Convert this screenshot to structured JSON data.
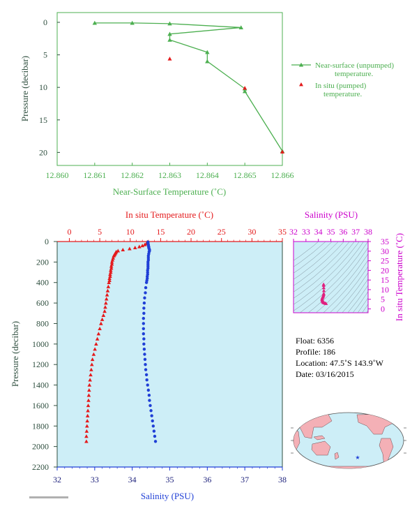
{
  "chart_data": [
    {
      "type": "line",
      "xlabel": "Near-Surface Temperature (˚C)",
      "ylabel": "Pressure (decibar)",
      "xlim": [
        12.86,
        12.866
      ],
      "ylim": [
        22,
        -1.5
      ],
      "x_ticks": [
        "12.860",
        "12.861",
        "12.862",
        "12.863",
        "12.864",
        "12.865",
        "12.866"
      ],
      "y_ticks": [
        "0",
        "5",
        "10",
        "15",
        "20"
      ],
      "legend_placement": "right",
      "series": [
        {
          "name": "Near-surface (unpumped) temperature.",
          "name_lines": [
            "Near-surface (unpumped)",
            "temperature."
          ],
          "color": "#4caf50",
          "marker": "triangle",
          "x": [
            12.861,
            12.862,
            12.863,
            12.8649,
            12.863,
            12.863,
            12.864,
            12.864,
            12.865,
            12.865,
            12.866
          ],
          "y": [
            0.1,
            0.1,
            0.2,
            0.8,
            1.8,
            2.7,
            4.6,
            6.0,
            10.2,
            10.6,
            19.8
          ]
        },
        {
          "name": "In situ (pumped) temperature.",
          "name_lines": [
            "In situ (pumped)",
            "temperature."
          ],
          "color": "#e41a1c",
          "marker": "triangle",
          "x": [
            12.863,
            12.865,
            12.866
          ],
          "y": [
            5.6,
            10.1,
            19.9
          ]
        }
      ]
    },
    {
      "type": "scatter",
      "title_top_axis": "In situ Temperature (˚C)",
      "xlabel": "Salinity (PSU)",
      "ylabel": "Pressure (decibar)",
      "temp_lim": [
        -2,
        35
      ],
      "temp_ticks": [
        "0",
        "5",
        "10",
        "15",
        "20",
        "25",
        "30",
        "35"
      ],
      "sal_lim": [
        32,
        38
      ],
      "sal_ticks": [
        "32",
        "33",
        "34",
        "35",
        "36",
        "37",
        "38"
      ],
      "ylim": [
        2200,
        0
      ],
      "y_ticks": [
        "0",
        "200",
        "400",
        "600",
        "800",
        "1000",
        "1200",
        "1400",
        "1600",
        "1800",
        "2000",
        "2200"
      ],
      "series": [
        {
          "name": "In situ Temperature",
          "color": "#e41a1c",
          "marker": "triangle",
          "depth": [
            5,
            10,
            20,
            30,
            40,
            50,
            60,
            70,
            80,
            90,
            100,
            110,
            120,
            130,
            140,
            160,
            180,
            200,
            220,
            240,
            260,
            280,
            300,
            320,
            340,
            360,
            380,
            400,
            440,
            480,
            520,
            560,
            600,
            640,
            680,
            720,
            760,
            800,
            850,
            900,
            950,
            1000,
            1050,
            1100,
            1150,
            1200,
            1250,
            1300,
            1350,
            1400,
            1450,
            1500,
            1550,
            1600,
            1650,
            1700,
            1750,
            1800,
            1850,
            1900,
            1950
          ],
          "temp": [
            12.8,
            12.8,
            12.7,
            12.4,
            12.0,
            11.5,
            10.8,
            9.9,
            8.8,
            8.0,
            7.7,
            7.6,
            7.5,
            7.4,
            7.3,
            7.2,
            7.1,
            7.0,
            7.0,
            6.9,
            6.9,
            6.8,
            6.8,
            6.7,
            6.7,
            6.6,
            6.6,
            6.5,
            6.4,
            6.3,
            6.2,
            6.1,
            6.0,
            5.9,
            5.8,
            5.6,
            5.4,
            5.2,
            5.0,
            4.8,
            4.6,
            4.4,
            4.2,
            4.0,
            3.8,
            3.7,
            3.6,
            3.5,
            3.4,
            3.3,
            3.25,
            3.2,
            3.15,
            3.1,
            3.05,
            3.0,
            2.95,
            2.9,
            2.85,
            2.8,
            2.8
          ]
        },
        {
          "name": "Salinity",
          "color": "#1f3fd6",
          "marker": "circle",
          "depth": [
            5,
            10,
            20,
            30,
            40,
            50,
            60,
            70,
            80,
            90,
            100,
            120,
            140,
            160,
            180,
            200,
            220,
            240,
            260,
            280,
            300,
            320,
            340,
            360,
            380,
            400,
            450,
            500,
            550,
            600,
            650,
            700,
            750,
            800,
            850,
            900,
            950,
            1000,
            1050,
            1100,
            1150,
            1200,
            1250,
            1300,
            1350,
            1400,
            1450,
            1500,
            1550,
            1600,
            1650,
            1700,
            1750,
            1800,
            1850,
            1900,
            1950
          ],
          "sal": [
            34.42,
            34.42,
            34.42,
            34.43,
            34.43,
            34.44,
            34.44,
            34.45,
            34.46,
            34.46,
            34.45,
            34.44,
            34.43,
            34.43,
            34.43,
            34.42,
            34.42,
            34.42,
            34.42,
            34.41,
            34.41,
            34.41,
            34.4,
            34.4,
            34.39,
            34.38,
            34.36,
            34.35,
            34.33,
            34.32,
            34.31,
            34.31,
            34.3,
            34.3,
            34.3,
            34.3,
            34.31,
            34.31,
            34.32,
            34.33,
            34.34,
            34.35,
            34.36,
            34.38,
            34.39,
            34.41,
            34.43,
            34.45,
            34.46,
            34.48,
            34.5,
            34.52,
            34.54,
            34.56,
            34.58,
            34.6,
            34.62
          ]
        }
      ]
    },
    {
      "type": "scatter",
      "title": "Salinity (PSU)",
      "ylabel": "In situ Temperature (˚C)",
      "sal_lim": [
        32,
        38
      ],
      "sal_ticks": [
        "32",
        "33",
        "34",
        "35",
        "36",
        "37",
        "38"
      ],
      "temp_lim": [
        -2,
        35
      ],
      "temp_ticks": [
        "0",
        "5",
        "10",
        "15",
        "20",
        "25",
        "30",
        "35"
      ],
      "points_color": "#e0207f",
      "points": [
        [
          34.42,
          12.8
        ],
        [
          34.42,
          12.2
        ],
        [
          34.43,
          11.0
        ],
        [
          34.44,
          9.5
        ],
        [
          34.43,
          8.0
        ],
        [
          34.42,
          7.5
        ],
        [
          34.4,
          7.0
        ],
        [
          34.38,
          6.6
        ],
        [
          34.35,
          6.2
        ],
        [
          34.32,
          5.8
        ],
        [
          34.3,
          5.2
        ],
        [
          34.31,
          4.6
        ],
        [
          34.33,
          4.0
        ],
        [
          34.36,
          3.6
        ],
        [
          34.41,
          3.3
        ],
        [
          34.48,
          3.1
        ],
        [
          34.56,
          2.9
        ],
        [
          34.62,
          2.8
        ],
        [
          34.34,
          4.4
        ],
        [
          34.3,
          5.0
        ]
      ]
    }
  ],
  "float_info": {
    "float": "Float:  6356",
    "profile": "Profile:  186",
    "location": "Location:  47.5˚S  143.9˚W",
    "date": "Date:  03/16/2015"
  },
  "colors": {
    "green": "#4caf50",
    "top_axis_text": "#2f4f3f",
    "red": "#e41a1c",
    "blue": "#1f3fd6",
    "magenta": "#cc00cc",
    "panel_bg": "#cdeef7",
    "land": "#f4b0b6",
    "ocean": "#cdeef7",
    "navy_axis": "#1b1f7a"
  }
}
